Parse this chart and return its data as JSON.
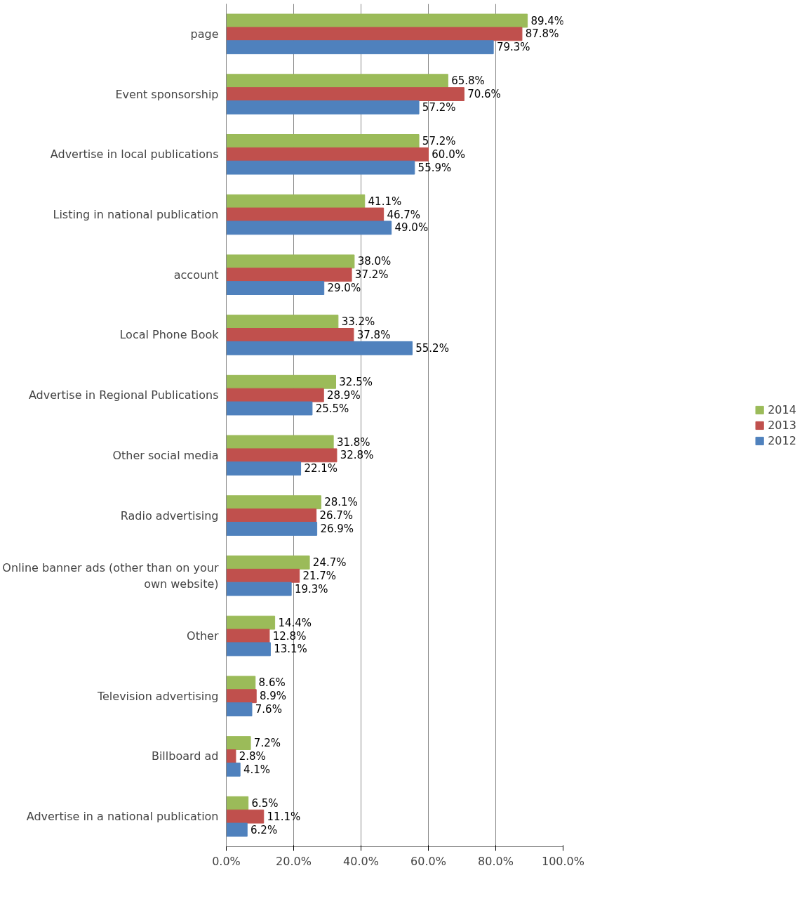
{
  "chart_data": {
    "type": "bar",
    "orientation": "horizontal",
    "categories": [
      "page",
      "Event sponsorship",
      "Advertise in local publications",
      "Listing in national publication",
      "account",
      "Local Phone Book",
      "Advertise in Regional Publications",
      "Other social media",
      "Radio advertising",
      "Online banner ads (other than on your own website)",
      "Other",
      "Television advertising",
      "Billboard ad",
      "Advertise in a national publication"
    ],
    "series": [
      {
        "name": "2014",
        "color": "#9bbb59",
        "values": [
          89.4,
          65.8,
          57.2,
          41.1,
          38.0,
          33.2,
          32.5,
          31.8,
          28.1,
          24.7,
          14.4,
          8.6,
          7.2,
          6.5
        ],
        "value_labels": [
          "89.4%",
          "65.8%",
          "57.2%",
          "41.1%",
          "38.0%",
          "33.2%",
          "32.5%",
          "31.8%",
          "28.1%",
          "24.7%",
          "14.4%",
          "8.6%",
          "7.2%",
          "6.5%"
        ]
      },
      {
        "name": "2013",
        "color": "#c0504d",
        "values": [
          87.8,
          70.6,
          60.0,
          46.7,
          37.2,
          37.8,
          28.9,
          32.8,
          26.7,
          21.7,
          12.8,
          8.9,
          2.8,
          11.1
        ],
        "value_labels": [
          "87.8%",
          "70.6%",
          "60.0%",
          "46.7%",
          "37.2%",
          "37.8%",
          "28.9%",
          "32.8%",
          "26.7%",
          "21.7%",
          "12.8%",
          "8.9%",
          "2.8%",
          "11.1%"
        ]
      },
      {
        "name": "2012",
        "color": "#4f81bd",
        "values": [
          79.3,
          57.2,
          55.9,
          49.0,
          29.0,
          55.2,
          25.5,
          22.1,
          26.9,
          19.3,
          13.1,
          7.6,
          4.1,
          6.2
        ],
        "value_labels": [
          "79.3%",
          "57.2%",
          "55.9%",
          "49.0%",
          "29.0%",
          "55.2%",
          "25.5%",
          "22.1%",
          "26.9%",
          "19.3%",
          "13.1%",
          "7.6%",
          "4.1%",
          "6.2%"
        ]
      }
    ],
    "xlim": [
      0,
      100
    ],
    "xticks": [
      {
        "value": 0,
        "label": "0.0%"
      },
      {
        "value": 20,
        "label": "20.0%"
      },
      {
        "value": 40,
        "label": "40.0%"
      },
      {
        "value": 60,
        "label": "60.0%"
      },
      {
        "value": 80,
        "label": "80.0%"
      },
      {
        "value": 100,
        "label": "100.0%"
      }
    ],
    "grid": "x",
    "legend": "right"
  }
}
